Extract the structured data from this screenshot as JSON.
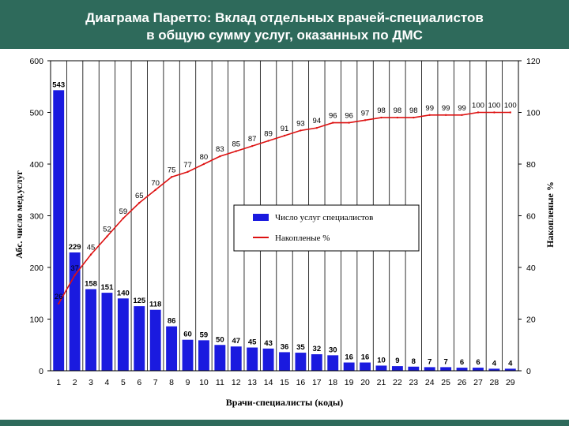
{
  "header": {
    "title_line1": "Диаграма Паретто: Вклад отдельных врачей-специалистов",
    "title_line2": "в общую сумму услуг, оказанных по ДМС"
  },
  "chart_data": {
    "type": "bar",
    "categories": [
      "1",
      "2",
      "3",
      "4",
      "5",
      "6",
      "7",
      "8",
      "9",
      "10",
      "11",
      "12",
      "13",
      "14",
      "15",
      "16",
      "17",
      "18",
      "19",
      "20",
      "21",
      "22",
      "23",
      "24",
      "25",
      "26",
      "27",
      "28",
      "29"
    ],
    "series": [
      {
        "name": "Число услуг специалистов",
        "type": "bar",
        "axis": "left",
        "color": "#1a1adf",
        "values": [
          543,
          229,
          158,
          151,
          140,
          125,
          118,
          86,
          60,
          59,
          50,
          47,
          45,
          43,
          36,
          35,
          32,
          30,
          16,
          16,
          10,
          9,
          8,
          7,
          7,
          6,
          6,
          4,
          4
        ]
      },
      {
        "name": "Накопленые %",
        "type": "line",
        "axis": "right",
        "color": "#dd1111",
        "values": [
          26,
          37,
          45,
          52,
          59,
          65,
          70,
          75,
          77,
          80,
          83,
          85,
          87,
          89,
          91,
          93,
          94,
          96,
          96,
          97,
          98,
          98,
          98,
          99,
          99,
          99,
          100,
          100,
          100
        ]
      }
    ],
    "xlabel": "Врачи-специалисты (коды)",
    "ylabel": "Абс. число мед.услуг",
    "y2label": "Накопленые %",
    "ylim": [
      0,
      600
    ],
    "y2lim": [
      0,
      120
    ],
    "yticks": [
      0,
      100,
      200,
      300,
      400,
      500,
      600
    ],
    "y2ticks": [
      0,
      20,
      40,
      60,
      80,
      100,
      120
    ],
    "grid": "vertical",
    "legend": "right"
  }
}
